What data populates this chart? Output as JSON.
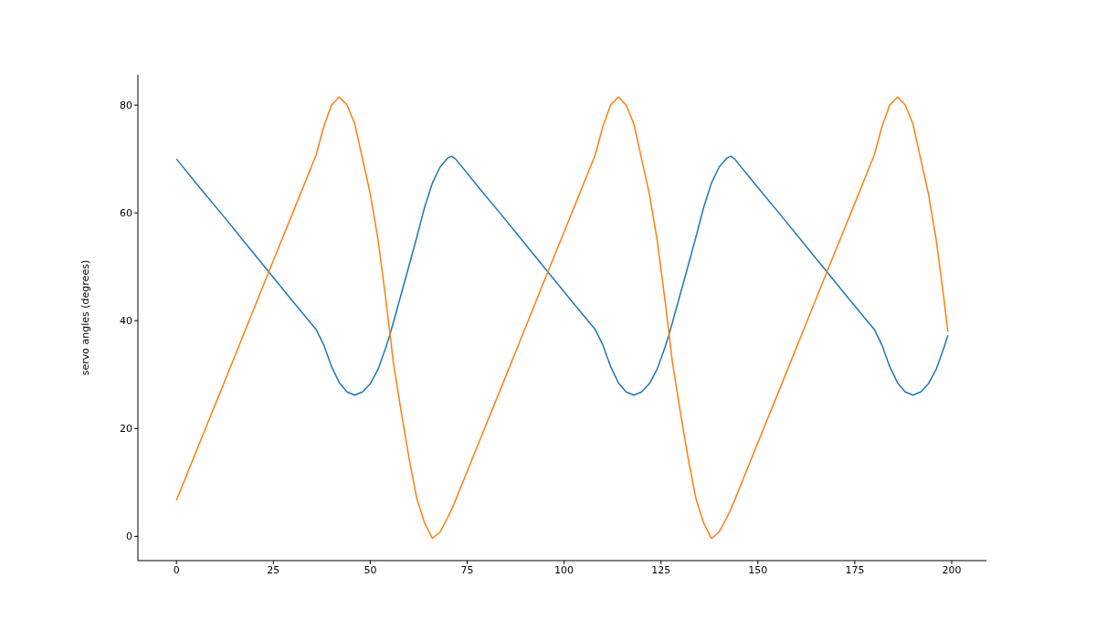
{
  "chart_data": {
    "type": "line",
    "ylabel": "servo angles (degrees)",
    "x": [
      0,
      6,
      12,
      18,
      24,
      30,
      36,
      38,
      40,
      42,
      44,
      46,
      48,
      50,
      52,
      54,
      55,
      56,
      58,
      60,
      62,
      64,
      66,
      68,
      70,
      71,
      72,
      78,
      84,
      90,
      96,
      102,
      108,
      110,
      112,
      114,
      116,
      118,
      120,
      122,
      124,
      126,
      127,
      128,
      130,
      132,
      134,
      136,
      138,
      140,
      142,
      143,
      144,
      150,
      156,
      162,
      168,
      174,
      180,
      182,
      184,
      186,
      188,
      190,
      192,
      194,
      196,
      198,
      199
    ],
    "series": [
      {
        "color": "#1f77b4",
        "values": [
          70,
          64.7,
          59.5,
          54.2,
          48.9,
          43.6,
          38.4,
          35.5,
          31.5,
          28.5,
          26.8,
          26.2,
          26.8,
          28.3,
          31,
          35,
          37.3,
          39.8,
          45,
          50.2,
          55.5,
          61,
          65.5,
          68.5,
          70.2,
          70.5,
          70,
          64.7,
          59.5,
          54.2,
          48.9,
          43.6,
          38.4,
          35.5,
          31.5,
          28.5,
          26.8,
          26.2,
          26.8,
          28.3,
          31,
          35,
          37.3,
          39.8,
          45,
          50.2,
          55.5,
          61,
          65.5,
          68.5,
          70.2,
          70.5,
          70,
          64.7,
          59.5,
          54.2,
          48.9,
          43.6,
          38.4,
          35.5,
          31.5,
          28.5,
          26.8,
          26.2,
          26.8,
          28.3,
          31,
          35,
          37.3
        ]
      },
      {
        "color": "#ff7f0e",
        "values": [
          6.7,
          17.4,
          28,
          38.7,
          49.4,
          60,
          70.7,
          76,
          80,
          81.5,
          80,
          76.5,
          70,
          63.5,
          55,
          44,
          38,
          32,
          23,
          14.5,
          7,
          2.5,
          -0.4,
          0.8,
          3.5,
          5,
          6.7,
          17.4,
          28,
          38.7,
          49.4,
          60,
          70.7,
          76,
          80,
          81.5,
          80,
          76.5,
          70,
          63.5,
          55,
          44,
          38,
          32,
          23,
          14.5,
          7,
          2.5,
          -0.4,
          0.8,
          3.5,
          5,
          6.7,
          17.4,
          28,
          38.7,
          49.4,
          60,
          70.7,
          76,
          80,
          81.5,
          80,
          76.5,
          70,
          63.5,
          55,
          44,
          38
        ]
      }
    ],
    "xlim": [
      -9.95,
      208.95
    ],
    "xticks": [
      0,
      25,
      50,
      75,
      100,
      125,
      150,
      175,
      200
    ],
    "ylim": [
      -4.5,
      85.6
    ],
    "yticks": [
      0,
      20,
      40,
      60,
      80
    ],
    "grid": false,
    "legend": false,
    "marker": "none",
    "line_style": "solid"
  }
}
